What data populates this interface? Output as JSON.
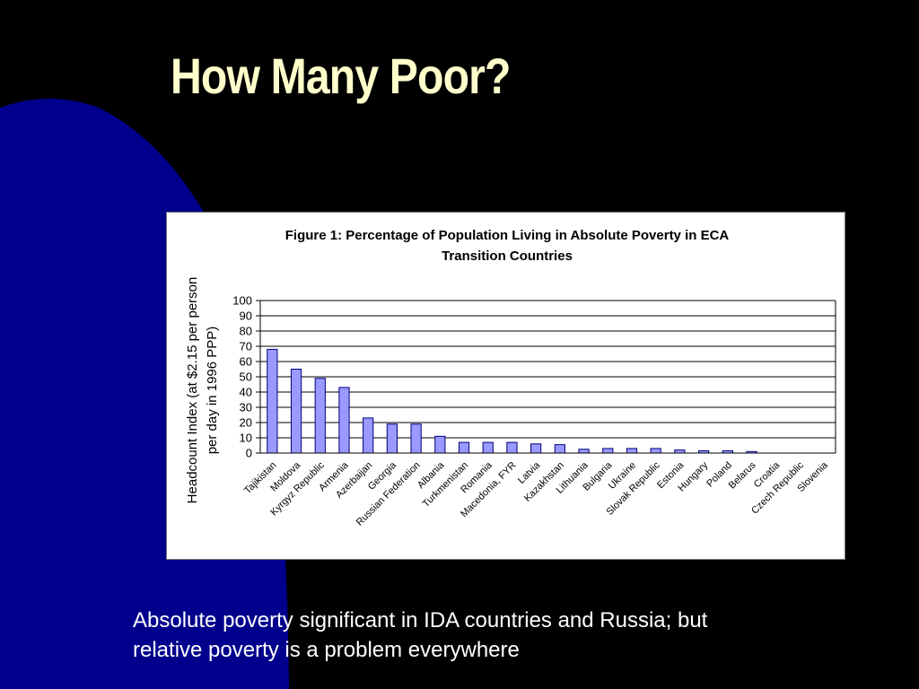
{
  "slide": {
    "title": "How Many Poor?",
    "caption_lines": [
      "Absolute poverty significant in IDA countries and Russia; but",
      "relative poverty is a problem everywhere"
    ]
  },
  "colors": {
    "background": "#000000",
    "background_shape": "#00008c",
    "title": "#ffffcc",
    "bar_fill": "#9999ff",
    "bar_stroke": "#000080"
  },
  "chart_data": {
    "type": "bar",
    "title_lines": [
      "Figure 1: Percentage of  Population Living in Absolute Poverty in ECA",
      "Transition Countries"
    ],
    "ylabel_lines": [
      "Headcount Index (at $2.15 per person",
      "per day in 1996 PPP)"
    ],
    "xlabel": "",
    "ylim": [
      0,
      100
    ],
    "yticks": [
      0,
      10,
      20,
      30,
      40,
      50,
      60,
      70,
      80,
      90,
      100
    ],
    "grid": true,
    "categories": [
      "Tajikistan",
      "Moldova",
      "Kyrgyz Republic",
      "Armenia",
      "Azerbaijan",
      "Georgia",
      "Russian Federation",
      "Albania",
      "Turkmenistan",
      "Romania",
      "Macedonia, FYR",
      "Latvia",
      "Kazakhstan",
      "Lithuania",
      "Bulgaria",
      "Ukraine",
      "Slovak Republic",
      "Estonia",
      "Hungary",
      "Poland",
      "Belarus",
      "Croatia",
      "Czech  Republic",
      "Slovenia"
    ],
    "values": [
      68,
      55,
      49,
      43,
      23,
      19,
      19,
      11,
      7,
      7,
      7,
      6,
      5.5,
      2.5,
      3,
      3,
      3,
      2,
      1.5,
      1.5,
      1,
      0,
      0,
      0
    ]
  }
}
